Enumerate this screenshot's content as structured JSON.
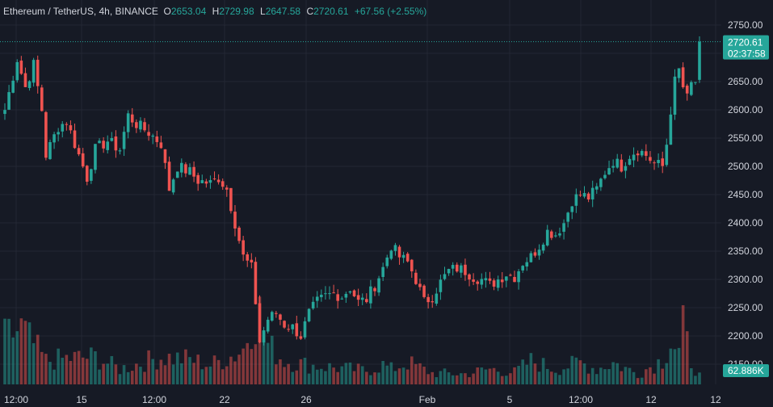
{
  "legend": {
    "symbol": "Ethereum / TetherUS, 4h, BINANCE",
    "open_label": "O",
    "open": "2653.04",
    "high_label": "H",
    "high": "2729.98",
    "low_label": "L",
    "low": "2647.58",
    "close_label": "C",
    "close": "2720.61",
    "change": "+67.56 (+2.55%)"
  },
  "price_tag": {
    "price": "2720.61",
    "countdown": "02:37:58"
  },
  "volume_tag": "62.886K",
  "colors": {
    "up": "#26a69a",
    "down": "#ef5350",
    "background": "#161a25",
    "grid": "#232733"
  },
  "chart_data": {
    "type": "candlestick",
    "symbol": "Ethereum / TetherUS",
    "interval": "4h",
    "exchange": "BINANCE",
    "y_ticks": [
      2150,
      2200,
      2250,
      2300,
      2350,
      2400,
      2450,
      2500,
      2550,
      2600,
      2650,
      2700,
      2750
    ],
    "y_tick_labels": [
      "2150.00",
      "2200.00",
      "2250.00",
      "2300.00",
      "2350.00",
      "2400.00",
      "2450.00",
      "2500.00",
      "2550.00",
      "2600.00",
      "2650.00",
      "2700.00",
      "2750.00"
    ],
    "x_tick_labels": [
      "12:00",
      "15",
      "12:00",
      "22",
      "26",
      "Feb",
      "5",
      "12:00",
      "12",
      "12"
    ],
    "last_price": 2720.61,
    "grid": true,
    "close_path": [
      [
        0,
        2600
      ],
      [
        3,
        2690
      ],
      [
        5,
        2640
      ],
      [
        7,
        2680
      ],
      [
        9,
        2600
      ],
      [
        10,
        2520
      ],
      [
        13,
        2570
      ],
      [
        15,
        2580
      ],
      [
        17,
        2540
      ],
      [
        20,
        2480
      ],
      [
        22,
        2530
      ],
      [
        25,
        2545
      ],
      [
        28,
        2530
      ],
      [
        30,
        2590
      ],
      [
        32,
        2575
      ],
      [
        35,
        2560
      ],
      [
        38,
        2540
      ],
      [
        40,
        2460
      ],
      [
        42,
        2500
      ],
      [
        45,
        2490
      ],
      [
        47,
        2475
      ],
      [
        50,
        2470
      ],
      [
        52,
        2480
      ],
      [
        54,
        2460
      ],
      [
        56,
        2400
      ],
      [
        58,
        2340
      ],
      [
        60,
        2320
      ],
      [
        61,
        2260
      ],
      [
        62,
        2190
      ],
      [
        64,
        2230
      ],
      [
        66,
        2240
      ],
      [
        68,
        2220
      ],
      [
        70,
        2215
      ],
      [
        72,
        2200
      ],
      [
        74,
        2240
      ],
      [
        76,
        2260
      ],
      [
        78,
        2270
      ],
      [
        80,
        2275
      ],
      [
        82,
        2270
      ],
      [
        84,
        2285
      ],
      [
        86,
        2260
      ],
      [
        88,
        2265
      ],
      [
        90,
        2290
      ],
      [
        92,
        2320
      ],
      [
        94,
        2360
      ],
      [
        96,
        2340
      ],
      [
        98,
        2330
      ],
      [
        100,
        2300
      ],
      [
        102,
        2260
      ],
      [
        104,
        2270
      ],
      [
        106,
        2295
      ],
      [
        108,
        2315
      ],
      [
        110,
        2320
      ],
      [
        112,
        2315
      ],
      [
        114,
        2305
      ],
      [
        116,
        2300
      ],
      [
        118,
        2290
      ],
      [
        120,
        2300
      ],
      [
        122,
        2310
      ],
      [
        124,
        2305
      ],
      [
        126,
        2330
      ],
      [
        128,
        2340
      ],
      [
        130,
        2360
      ],
      [
        132,
        2385
      ],
      [
        134,
        2380
      ],
      [
        136,
        2400
      ],
      [
        138,
        2440
      ],
      [
        140,
        2450
      ],
      [
        142,
        2445
      ],
      [
        144,
        2460
      ],
      [
        146,
        2490
      ],
      [
        148,
        2510
      ],
      [
        150,
        2500
      ],
      [
        152,
        2520
      ],
      [
        154,
        2530
      ],
      [
        156,
        2520
      ],
      [
        158,
        2505
      ],
      [
        160,
        2500
      ],
      [
        161,
        2540
      ],
      [
        162,
        2600
      ],
      [
        163,
        2650
      ],
      [
        164,
        2670
      ],
      [
        165,
        2640
      ],
      [
        166,
        2620
      ],
      [
        167,
        2645
      ],
      [
        168,
        2650
      ],
      [
        169,
        2720.61
      ]
    ],
    "volume": [
      [
        0,
        58
      ],
      [
        4,
        70
      ],
      [
        10,
        30
      ],
      [
        15,
        33
      ],
      [
        22,
        35
      ],
      [
        28,
        20
      ],
      [
        38,
        35
      ],
      [
        45,
        32
      ],
      [
        50,
        25
      ],
      [
        56,
        38
      ],
      [
        58,
        45
      ],
      [
        60,
        78
      ],
      [
        62,
        90
      ],
      [
        64,
        50
      ],
      [
        68,
        30
      ],
      [
        74,
        25
      ],
      [
        80,
        22
      ],
      [
        88,
        18
      ],
      [
        92,
        25
      ],
      [
        94,
        20
      ],
      [
        98,
        28
      ],
      [
        104,
        15
      ],
      [
        112,
        14
      ],
      [
        118,
        20
      ],
      [
        124,
        16
      ],
      [
        128,
        30
      ],
      [
        134,
        20
      ],
      [
        140,
        28
      ],
      [
        144,
        20
      ],
      [
        148,
        28
      ],
      [
        154,
        14
      ],
      [
        160,
        32
      ],
      [
        162,
        55
      ],
      [
        164,
        40
      ],
      [
        165,
        70
      ],
      [
        167,
        30
      ],
      [
        169,
        12
      ]
    ]
  }
}
